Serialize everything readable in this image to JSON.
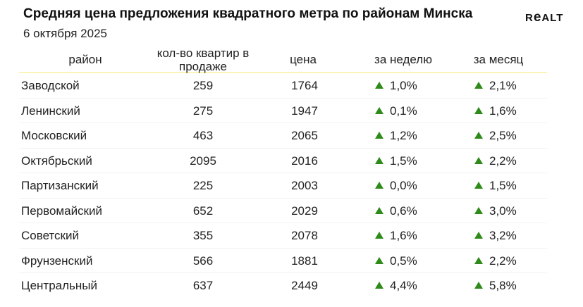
{
  "title": "Средняя цена предложения квадратного метра по районам Минска",
  "date": "6 октября 2025",
  "logo": {
    "text": "ReALT"
  },
  "columns": {
    "district": "район",
    "count": "кол-во квартир в продаже",
    "price": "цена",
    "week": "за неделю",
    "month": "за месяц"
  },
  "colors": {
    "up_arrow": "#2e8b1a",
    "header_line": "#fbf3b8"
  },
  "rows": [
    {
      "district": "Заводской",
      "count": "259",
      "price": "1764",
      "week": "1,0%",
      "month": "2,1%"
    },
    {
      "district": "Ленинский",
      "count": "275",
      "price": "1947",
      "week": "0,1%",
      "month": "1,6%"
    },
    {
      "district": "Московский",
      "count": "463",
      "price": "2065",
      "week": "1,2%",
      "month": "2,5%"
    },
    {
      "district": "Октябрьский",
      "count": "2095",
      "price": "2016",
      "week": "1,5%",
      "month": "2,2%"
    },
    {
      "district": "Партизанский",
      "count": "225",
      "price": "2003",
      "week": "0,0%",
      "month": "1,5%"
    },
    {
      "district": "Первомайский",
      "count": "652",
      "price": "2029",
      "week": "0,6%",
      "month": "3,0%"
    },
    {
      "district": "Советский",
      "count": "355",
      "price": "2078",
      "week": "1,6%",
      "month": "3,2%"
    },
    {
      "district": "Фрунзенский",
      "count": "566",
      "price": "1881",
      "week": "0,5%",
      "month": "2,2%"
    },
    {
      "district": "Центральный",
      "count": "637",
      "price": "2449",
      "week": "4,4%",
      "month": "5,8%"
    }
  ]
}
